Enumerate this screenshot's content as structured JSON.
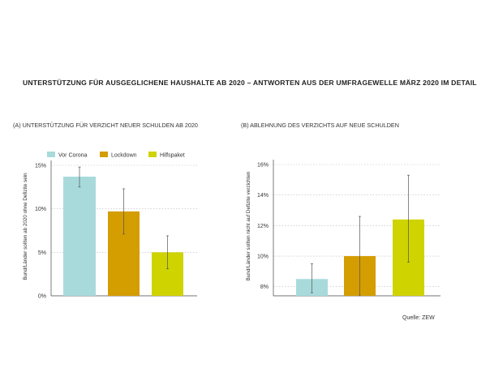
{
  "title": "UNTERSTÜTZUNG FÜR AUSGEGLICHENE HAUSHALTE AB 2020 – ANTWORTEN AUS DER UMFRAGEWELLE MÄRZ 2020 IM DETAIL",
  "source": "Quelle: ZEW",
  "colors": {
    "Vor Corona": "#a8dadb",
    "Lockdown": "#d49d00",
    "Hilfspaket": "#cfd300"
  },
  "chart_data": [
    {
      "type": "bar",
      "title": "(A) UNTERSTÜTZUNG FÜR VERZICHT NEUER SCHULDEN AB 2020",
      "ylabel": "Bund/Länder sollten ab 2020 ohne Defizite sein",
      "categories": [
        "Vor Corona",
        "Lockdown",
        "Hilfspaket"
      ],
      "values": [
        13.7,
        9.7,
        5.0
      ],
      "error_low": [
        12.5,
        7.1,
        3.1
      ],
      "error_high": [
        14.8,
        12.3,
        6.9
      ],
      "ylim": [
        0,
        15
      ],
      "yticks": [
        0,
        5,
        10,
        15
      ],
      "ytick_labels": [
        "0%",
        "5%",
        "10%",
        "15%"
      ],
      "grid": true,
      "legend": "top",
      "legend_entries": [
        "Vor Corona",
        "Lockdown",
        "Hilfspaket"
      ]
    },
    {
      "type": "bar",
      "title": "(B) ABLEHNUNG DES VERZICHTS AUF NEUE SCHULDEN",
      "ylabel": "Bund/Länder sollten nicht auf Defizite verzichten",
      "categories": [
        "Vor Corona",
        "Lockdown",
        "Hilfspaket"
      ],
      "values": [
        8.5,
        10.0,
        12.4
      ],
      "error_low": [
        7.6,
        7.4,
        9.6
      ],
      "error_high": [
        9.5,
        12.6,
        15.3
      ],
      "ylim": [
        7.4,
        16
      ],
      "yticks": [
        8,
        10,
        12,
        14,
        16
      ],
      "ytick_labels": [
        "8%",
        "10%",
        "12%",
        "14%",
        "16%"
      ],
      "grid": true
    }
  ]
}
